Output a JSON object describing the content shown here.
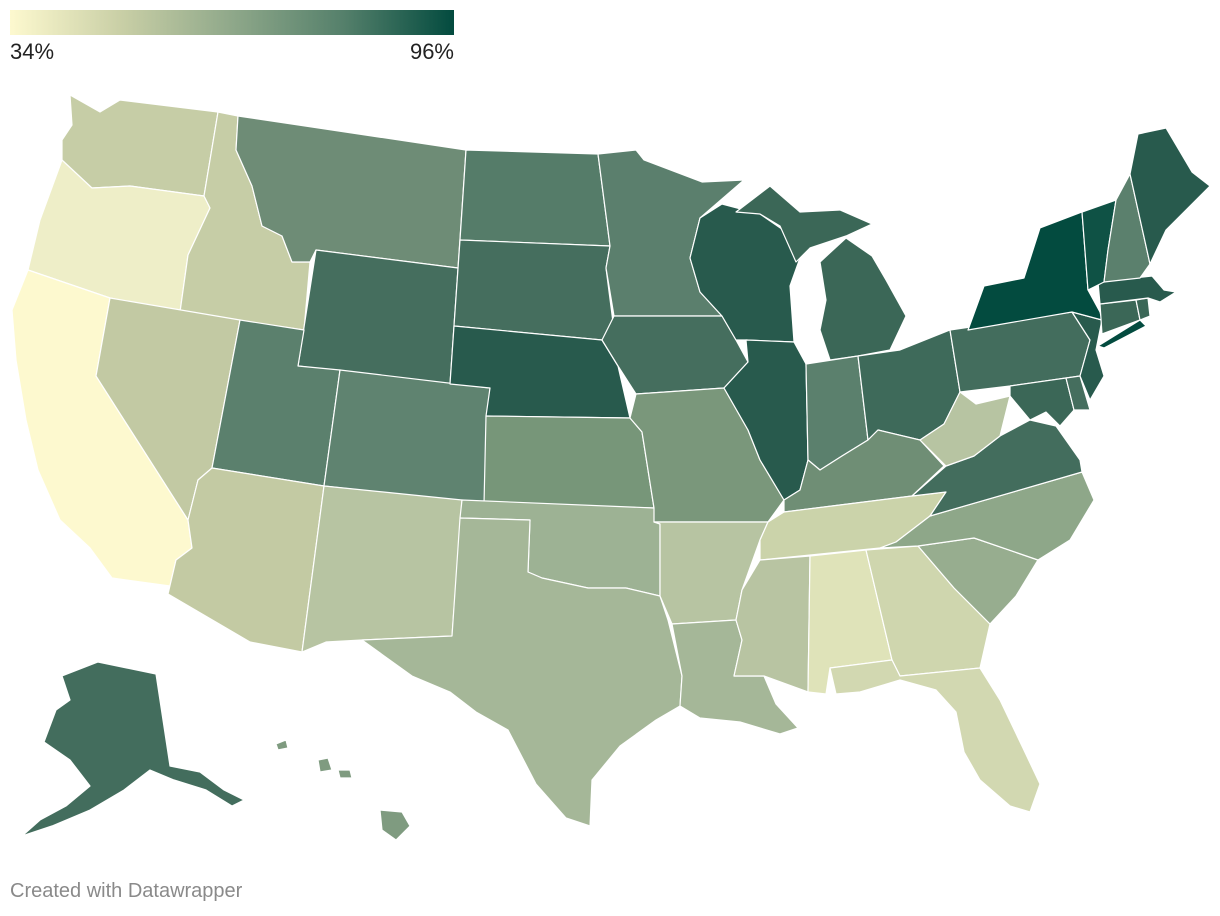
{
  "legend": {
    "min_label": "34%",
    "max_label": "96%",
    "min_value": 34,
    "max_value": 96,
    "gradient": [
      "#fdf9cf",
      "#c9cfa6",
      "#8fa88a",
      "#55806b",
      "#034b3f"
    ]
  },
  "credit": "Created with Datawrapper",
  "colors": {
    "background": "#ffffff",
    "state_border": "#ffffff",
    "credit_text": "#8a8a8a"
  },
  "states": {
    "WA": {
      "fill": "#c6cda6"
    },
    "OR": {
      "fill": "#eeeec8"
    },
    "CA": {
      "fill": "#fdf9cf"
    },
    "ID": {
      "fill": "#c6cda6"
    },
    "NV": {
      "fill": "#c2c9a3"
    },
    "MT": {
      "fill": "#6e8c76"
    },
    "WY": {
      "fill": "#456e5e"
    },
    "UT": {
      "fill": "#5b806d"
    },
    "AZ": {
      "fill": "#c3caa3"
    },
    "CO": {
      "fill": "#5f8370"
    },
    "NM": {
      "fill": "#b7c4a2"
    },
    "ND": {
      "fill": "#557c69"
    },
    "SD": {
      "fill": "#456e5e"
    },
    "NE": {
      "fill": "#285a4d"
    },
    "KS": {
      "fill": "#779679"
    },
    "OK": {
      "fill": "#9db294"
    },
    "TX": {
      "fill": "#a5b798"
    },
    "MN": {
      "fill": "#5b7f6d"
    },
    "IA": {
      "fill": "#456e5e"
    },
    "MO": {
      "fill": "#7a977b"
    },
    "AR": {
      "fill": "#b7c4a2"
    },
    "LA": {
      "fill": "#a5b798"
    },
    "WI": {
      "fill": "#285a4d"
    },
    "IL": {
      "fill": "#285a4d"
    },
    "MI": {
      "fill": "#3b6757"
    },
    "IN": {
      "fill": "#5b806d"
    },
    "OH": {
      "fill": "#3e6a5a"
    },
    "KY": {
      "fill": "#6f8e75"
    },
    "TN": {
      "fill": "#cbd3aa"
    },
    "MS": {
      "fill": "#b8c4a2"
    },
    "AL": {
      "fill": "#dfe3b9"
    },
    "GA": {
      "fill": "#cfd6ae"
    },
    "FL": {
      "fill": "#d2d8b1"
    },
    "SC": {
      "fill": "#97ad8f"
    },
    "NC": {
      "fill": "#8ea789"
    },
    "VA": {
      "fill": "#436d5d"
    },
    "WV": {
      "fill": "#b7c4a2"
    },
    "MD": {
      "fill": "#3b6757"
    },
    "DE": {
      "fill": "#456e5e"
    },
    "NJ": {
      "fill": "#285a4d"
    },
    "PA": {
      "fill": "#436d5d"
    },
    "NY": {
      "fill": "#034b3f"
    },
    "CT": {
      "fill": "#3b6757"
    },
    "RI": {
      "fill": "#3b6757"
    },
    "MA": {
      "fill": "#285a4d"
    },
    "VT": {
      "fill": "#0f5245"
    },
    "NH": {
      "fill": "#5b806d"
    },
    "ME": {
      "fill": "#285a4d"
    },
    "AK": {
      "fill": "#436d5d"
    },
    "HI": {
      "fill": "#7f9b80"
    }
  }
}
